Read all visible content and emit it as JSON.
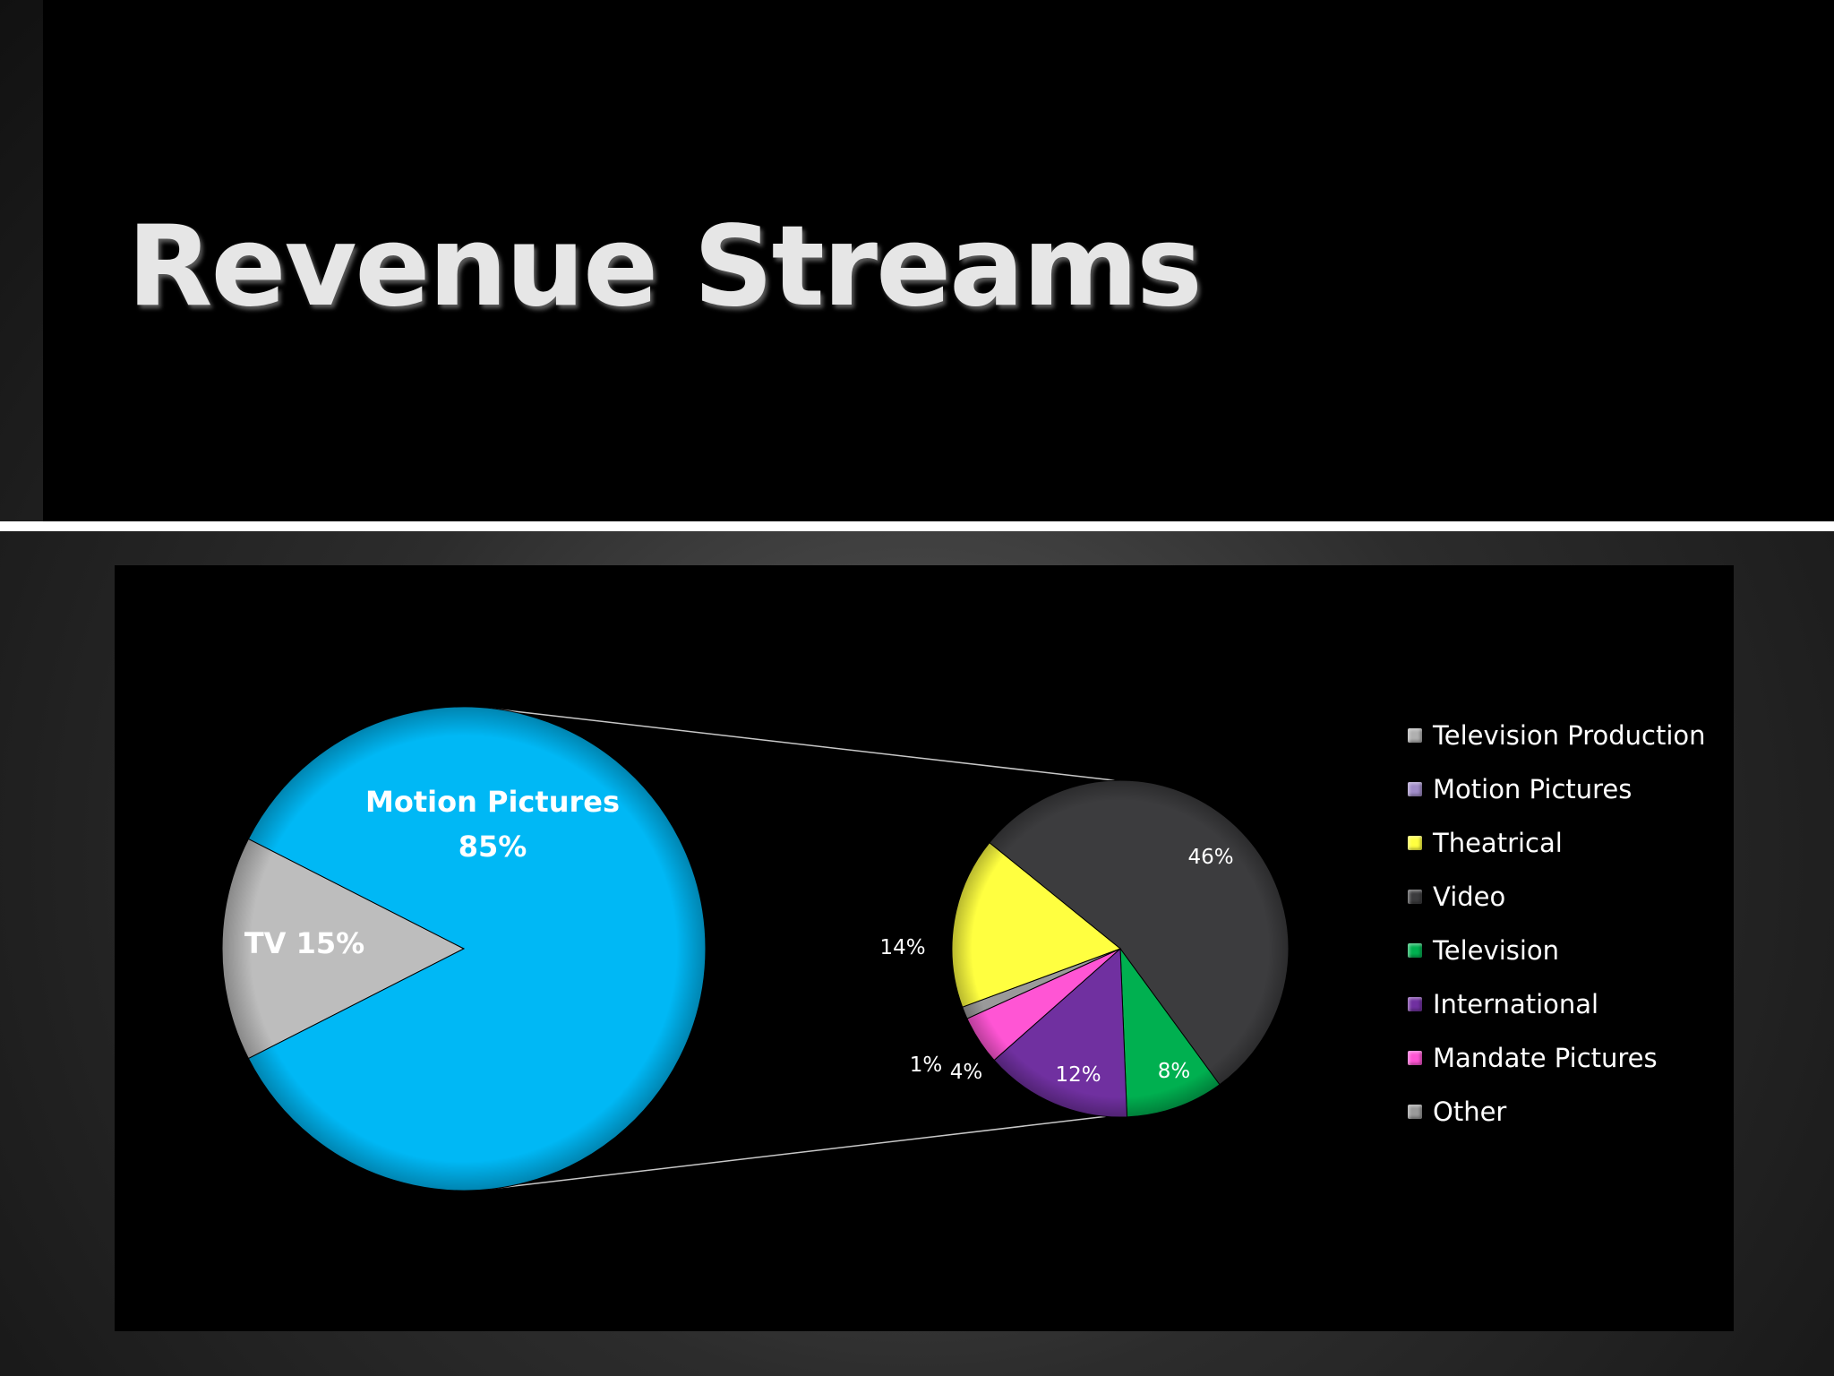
{
  "slide": {
    "title": "Revenue Streams"
  },
  "colors": {
    "background": "#000000",
    "title_text": "#e6e6e6",
    "divider": "#ffffff",
    "connector": "#c8c8c8"
  },
  "chart_data": [
    {
      "type": "pie",
      "slices": [
        {
          "label": "TV",
          "value": 15,
          "data_label": "TV 15%",
          "color": "#bdbdbd"
        },
        {
          "label": "Motion Pictures",
          "value": 85,
          "data_label": [
            "Motion Pictures",
            "85%"
          ],
          "color": "#00b8f5"
        }
      ]
    },
    {
      "type": "pie",
      "slices": [
        {
          "label": "Video",
          "value": 46,
          "data_label": "46%",
          "color": "#3c3c3e"
        },
        {
          "label": "Television",
          "value": 8,
          "data_label": "8%",
          "color": "#00b050"
        },
        {
          "label": "International",
          "value": 12,
          "data_label": "12%",
          "color": "#7030a0"
        },
        {
          "label": "Mandate Pictures",
          "value": 4,
          "data_label": "4%",
          "color": "#ff55d4"
        },
        {
          "label": "Other",
          "value": 1,
          "data_label": "1%",
          "color": "#9a9a9a"
        },
        {
          "label": "Theatrical",
          "value": 14,
          "data_label": "14%",
          "color": "#ffff40"
        }
      ]
    }
  ],
  "legend": {
    "position": "right",
    "items": [
      {
        "label": "Television Production",
        "color": "#b0b0b0"
      },
      {
        "label": "Motion Pictures",
        "color": "#a08cc8"
      },
      {
        "label": "Theatrical",
        "color": "#ffff40"
      },
      {
        "label": "Video",
        "color": "#3c3c3e"
      },
      {
        "label": "Television",
        "color": "#00b050"
      },
      {
        "label": "International",
        "color": "#7030a0"
      },
      {
        "label": "Mandate Pictures",
        "color": "#ff55d4"
      },
      {
        "label": "Other",
        "color": "#9a9a9a"
      }
    ]
  }
}
